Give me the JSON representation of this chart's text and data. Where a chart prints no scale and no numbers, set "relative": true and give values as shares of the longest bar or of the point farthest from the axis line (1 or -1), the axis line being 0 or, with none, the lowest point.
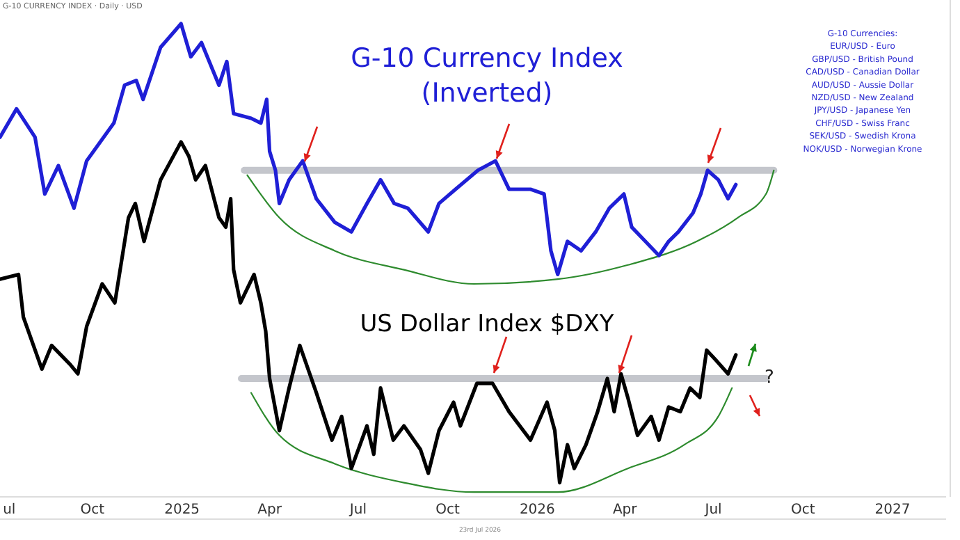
{
  "chart_data": {
    "type": "line",
    "relative": true,
    "title": "G-10 CURRENCY INDEX · Daily · USD",
    "grid": false,
    "marker": "none",
    "line_style": "solid",
    "xlim": [
      "2024-06-28",
      "2027-02-25"
    ],
    "xticks": [
      {
        "value": "2024-07-01",
        "label": "ul"
      },
      {
        "value": "2024-10-01",
        "label": "Oct"
      },
      {
        "value": "2025-01-01",
        "label": "2025"
      },
      {
        "value": "2025-04-01",
        "label": "Apr"
      },
      {
        "value": "2025-07-01",
        "label": "Jul"
      },
      {
        "value": "2025-10-01",
        "label": "Oct"
      },
      {
        "value": "2026-01-01",
        "label": "2026"
      },
      {
        "value": "2026-04-01",
        "label": "Apr"
      },
      {
        "value": "2026-07-01",
        "label": "Jul"
      },
      {
        "value": "2026-10-01",
        "label": "Oct"
      },
      {
        "value": "2027-01-01",
        "label": "2027"
      }
    ],
    "series": [
      {
        "name": "G-10 Currency Index (Inverted)",
        "color": "#1f1fd6",
        "x": [
          "2024-06-28",
          "2024-07-15",
          "2024-08-03",
          "2024-08-13",
          "2024-08-27",
          "2024-09-12",
          "2024-09-25",
          "2024-10-23",
          "2024-11-03",
          "2024-11-15",
          "2024-11-22",
          "2024-12-10",
          "2024-12-31",
          "2025-01-10",
          "2025-01-21",
          "2025-02-08",
          "2025-02-16",
          "2025-02-23",
          "2025-03-13",
          "2025-03-23",
          "2025-03-29",
          "2025-04-01",
          "2025-04-07",
          "2025-04-11",
          "2025-04-21",
          "2025-05-05",
          "2025-05-19",
          "2025-06-07",
          "2025-06-24",
          "2025-07-10",
          "2025-07-24",
          "2025-08-07",
          "2025-08-21",
          "2025-09-11",
          "2025-09-22",
          "2025-10-09",
          "2025-11-01",
          "2025-11-19",
          "2025-12-03",
          "2025-12-25",
          "2026-01-08",
          "2026-01-15",
          "2026-01-22",
          "2026-02-01",
          "2026-02-15",
          "2026-03-02",
          "2026-03-16",
          "2026-03-31",
          "2026-04-08",
          "2026-04-22",
          "2026-05-06",
          "2026-05-16",
          "2026-05-26",
          "2026-06-10",
          "2026-06-18",
          "2026-06-25",
          "2026-07-06",
          "2026-07-16",
          "2026-07-24"
        ],
        "values": [
          0.76,
          0.82,
          0.76,
          0.64,
          0.7,
          0.61,
          0.71,
          0.79,
          0.87,
          0.88,
          0.84,
          0.95,
          1,
          0.93,
          0.96,
          0.87,
          0.92,
          0.81,
          0.8,
          0.79,
          0.84,
          0.73,
          0.69,
          0.62,
          0.67,
          0.71,
          0.63,
          0.58,
          0.56,
          0.62,
          0.67,
          0.62,
          0.61,
          0.56,
          0.62,
          0.65,
          0.69,
          0.71,
          0.65,
          0.65,
          0.64,
          0.52,
          0.47,
          0.54,
          0.52,
          0.56,
          0.61,
          0.64,
          0.57,
          0.54,
          0.51,
          0.54,
          0.56,
          0.6,
          0.64,
          0.69,
          0.67,
          0.63,
          0.66
        ]
      },
      {
        "name": "US Dollar Index $DXY",
        "color": "#000000",
        "x": [
          "2024-06-28",
          "2024-07-17",
          "2024-07-22",
          "2024-08-10",
          "2024-08-20",
          "2024-09-08",
          "2024-09-16",
          "2024-09-25",
          "2024-10-11",
          "2024-10-24",
          "2024-11-07",
          "2024-11-14",
          "2024-11-23",
          "2024-12-10",
          "2024-12-31",
          "2025-01-08",
          "2025-01-15",
          "2025-01-25",
          "2025-02-08",
          "2025-02-15",
          "2025-02-20",
          "2025-02-23",
          "2025-03-02",
          "2025-03-16",
          "2025-03-23",
          "2025-03-28",
          "2025-04-01",
          "2025-04-11",
          "2025-04-21",
          "2025-05-02",
          "2025-05-19",
          "2025-06-04",
          "2025-06-14",
          "2025-06-24",
          "2025-07-10",
          "2025-07-17",
          "2025-07-24",
          "2025-08-06",
          "2025-08-17",
          "2025-09-03",
          "2025-09-11",
          "2025-09-22",
          "2025-10-07",
          "2025-10-14",
          "2025-10-31",
          "2025-11-16",
          "2025-12-03",
          "2025-12-25",
          "2026-01-11",
          "2026-01-19",
          "2026-01-24",
          "2026-02-01",
          "2026-02-08",
          "2026-02-20",
          "2026-03-04",
          "2026-03-14",
          "2026-03-21",
          "2026-03-28",
          "2026-04-04",
          "2026-04-14",
          "2026-04-28",
          "2026-05-06",
          "2026-05-16",
          "2026-05-28",
          "2026-06-07",
          "2026-06-17",
          "2026-06-24",
          "2026-07-03",
          "2026-07-16",
          "2026-07-24"
        ],
        "values": [
          0.46,
          0.47,
          0.38,
          0.27,
          0.32,
          0.28,
          0.26,
          0.36,
          0.45,
          0.41,
          0.59,
          0.62,
          0.54,
          0.67,
          0.75,
          0.72,
          0.67,
          0.7,
          0.59,
          0.57,
          0.63,
          0.48,
          0.41,
          0.47,
          0.41,
          0.35,
          0.25,
          0.14,
          0.23,
          0.32,
          0.22,
          0.12,
          0.17,
          0.06,
          0.15,
          0.09,
          0.23,
          0.12,
          0.15,
          0.1,
          0.05,
          0.14,
          0.2,
          0.15,
          0.24,
          0.24,
          0.18,
          0.12,
          0.2,
          0.14,
          0.03,
          0.11,
          0.06,
          0.11,
          0.18,
          0.25,
          0.18,
          0.26,
          0.21,
          0.13,
          0.17,
          0.12,
          0.19,
          0.18,
          0.23,
          0.21,
          0.31,
          0.29,
          0.26,
          0.3
        ]
      },
      {
        "color": "#c4c6cc",
        "x": [
          "2025-03-06",
          "2026-09-01"
        ],
        "values": [
          0.69,
          0.69
        ]
      },
      {
        "color": "#c4c6cc",
        "x": [
          "2025-03-03",
          "2026-08-24"
        ],
        "values": [
          0.25,
          0.25
        ]
      },
      {
        "color": "#2e8b2e",
        "x": [
          "2025-03-09",
          "2025-04-11",
          "2025-06-07",
          "2025-08-17",
          "2025-10-28",
          "2026-01-22",
          "2026-04-04",
          "2026-06-14",
          "2026-07-26",
          "2026-08-24",
          "2026-09-01"
        ],
        "values": [
          0.68,
          0.59,
          0.52,
          0.48,
          0.45,
          0.46,
          0.49,
          0.54,
          0.59,
          0.64,
          0.69
        ]
      },
      {
        "color": "#2e8b2e",
        "x": [
          "2025-03-13",
          "2025-04-11",
          "2025-06-07",
          "2025-08-17",
          "2025-10-28",
          "2026-01-22",
          "2026-04-04",
          "2026-06-01",
          "2026-07-06",
          "2026-07-20"
        ],
        "values": [
          0.22,
          0.13,
          0.07,
          0.03,
          0.01,
          0.01,
          0.06,
          0.11,
          0.17,
          0.23
        ]
      }
    ],
    "annotations": [
      "G-10 Currencies:",
      "EUR/USD - Euro",
      "GBP/USD - British Pound",
      "CAD/USD - Canadian Dollar",
      "AUD/USD - Aussie Dollar",
      "NZD/USD - New Zealand",
      "JPY/USD - Japanese Yen",
      "CHF/USD - Swiss Franc",
      "SEK/USD - Swedish Krona",
      "NOK/USD - Norwegian Krone",
      "?",
      "23rd Jul 2026"
    ]
  }
}
